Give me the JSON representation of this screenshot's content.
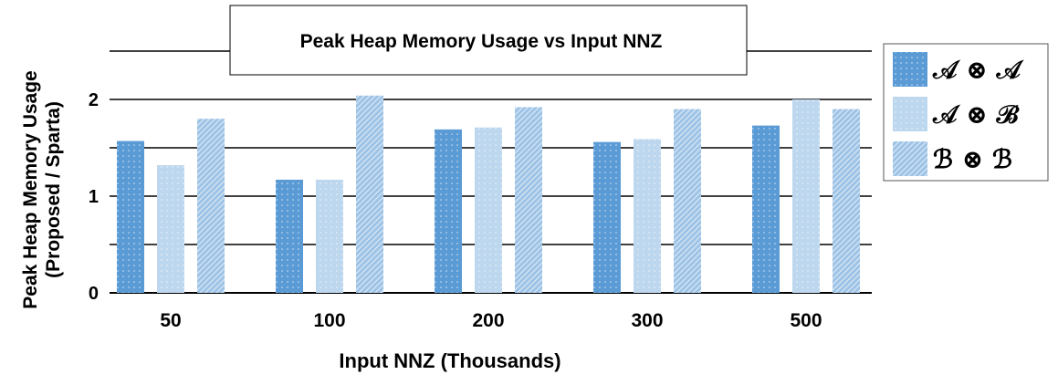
{
  "chart_data": {
    "type": "bar",
    "title": "Peak Heap Memory Usage vs Input NNZ",
    "x_label": "Input NNZ (Thousands)",
    "y_label": [
      "Peak Heap Memory Usage",
      "(Proposed / Sparta)"
    ],
    "categories": [
      "50",
      "100",
      "200",
      "300",
      "500"
    ],
    "series": [
      {
        "name": "𝒜 ⊗ 𝒜",
        "color": "#5b9bd5",
        "pattern": "dots",
        "values": [
          1.57,
          1.17,
          1.69,
          1.56,
          1.73
        ]
      },
      {
        "name": "𝒜 ⊗ ℬ",
        "color": "#bdd7ee",
        "pattern": "dots",
        "values": [
          1.32,
          1.17,
          1.71,
          1.59,
          2.0
        ]
      },
      {
        "name": "ℬ ⊗ ℬ",
        "color": "#9dc3e6",
        "pattern": "hatch",
        "values": [
          1.8,
          2.04,
          1.92,
          1.9,
          1.9
        ]
      }
    ],
    "ylim": [
      0,
      2.5
    ],
    "yticks": [
      0,
      1,
      2
    ],
    "grid_lines": [
      0.5,
      1,
      1.5,
      2,
      2.5
    ],
    "legend": "right"
  }
}
